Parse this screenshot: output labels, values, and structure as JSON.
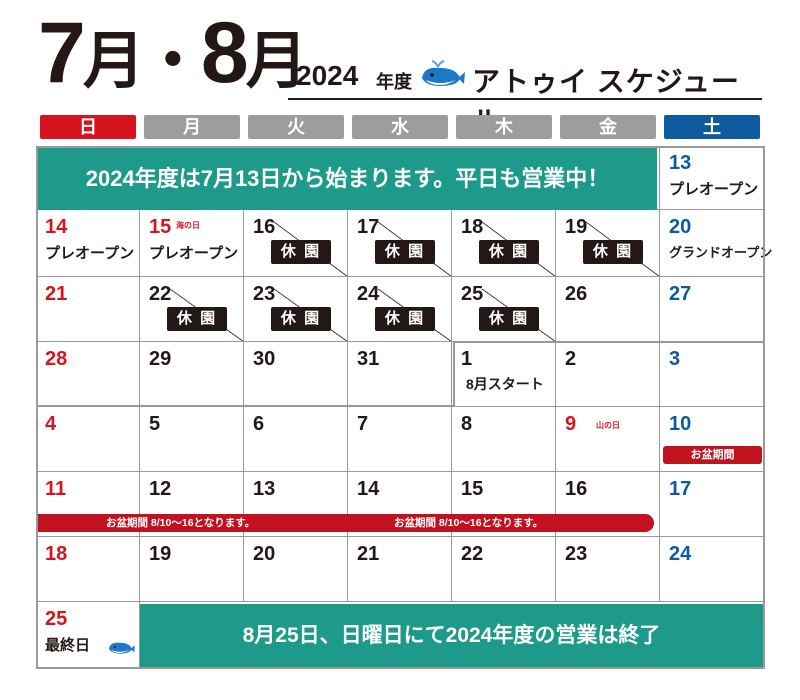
{
  "header": {
    "month1": "7",
    "month_kanji": "月",
    "dot": "・",
    "month2": "8",
    "year": "2024",
    "nendo": "年度",
    "schedule_title": "アトゥイ スケジュール",
    "whale_icon": "whale-icon"
  },
  "weekdays": [
    "日",
    "月",
    "火",
    "水",
    "木",
    "金",
    "土"
  ],
  "colors": {
    "sunday_header": "#d7141d",
    "weekday_header": "#9d9d9d",
    "saturday_header": "#0d5a9e",
    "teal": "#1d9a8a",
    "red": "#d7141d",
    "blue": "#0d5a9e"
  },
  "banner_top": "2024年度は7月13日から始まります。平日も営業中！",
  "banner_bottom": "8月25日、日曜日にて2024年度の営業は終了",
  "closed_label": "休 園",
  "obon_label": "お盆期間",
  "obon_bar_text": "お盆期間 8/10〜16となります。",
  "rows": [
    [
      {
        "day": ""
      },
      {
        "day": ""
      },
      {
        "day": ""
      },
      {
        "day": ""
      },
      {
        "day": ""
      },
      {
        "day": ""
      },
      {
        "day": "13",
        "note": "プレオープン"
      }
    ],
    [
      {
        "day": "14",
        "note": "プレオープン"
      },
      {
        "day": "15",
        "note": "プレオープン",
        "holiday": "海の日"
      },
      {
        "day": "16",
        "closed": true
      },
      {
        "day": "17",
        "closed": true
      },
      {
        "day": "18",
        "closed": true
      },
      {
        "day": "19",
        "closed": true
      },
      {
        "day": "20",
        "note": "グランドオープン"
      }
    ],
    [
      {
        "day": "21"
      },
      {
        "day": "22",
        "closed": true
      },
      {
        "day": "23",
        "closed": true
      },
      {
        "day": "24",
        "closed": true
      },
      {
        "day": "25",
        "closed": true
      },
      {
        "day": "26"
      },
      {
        "day": "27"
      }
    ],
    [
      {
        "day": "28"
      },
      {
        "day": "29"
      },
      {
        "day": "30"
      },
      {
        "day": "31"
      },
      {
        "day": "1",
        "note": "8月スタート"
      },
      {
        "day": "2"
      },
      {
        "day": "3"
      }
    ],
    [
      {
        "day": "4"
      },
      {
        "day": "5"
      },
      {
        "day": "6"
      },
      {
        "day": "7"
      },
      {
        "day": "8"
      },
      {
        "day": "9",
        "holiday": "山の日"
      },
      {
        "day": "10"
      }
    ],
    [
      {
        "day": "11"
      },
      {
        "day": "12"
      },
      {
        "day": "13"
      },
      {
        "day": "14"
      },
      {
        "day": "15"
      },
      {
        "day": "16"
      },
      {
        "day": "17"
      }
    ],
    [
      {
        "day": "18"
      },
      {
        "day": "19"
      },
      {
        "day": "20"
      },
      {
        "day": "21"
      },
      {
        "day": "22"
      },
      {
        "day": "23"
      },
      {
        "day": "24"
      }
    ],
    [
      {
        "day": "25",
        "note": "最終日"
      }
    ]
  ]
}
